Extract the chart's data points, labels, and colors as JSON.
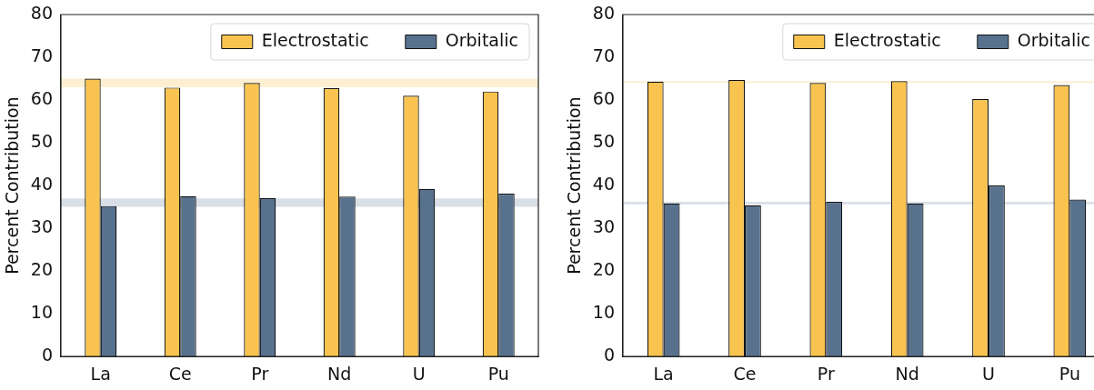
{
  "chart_data": [
    {
      "type": "bar",
      "categories": [
        "La",
        "Ce",
        "Pr",
        "Nd",
        "U",
        "Pu"
      ],
      "ylabel": "Percent Contribution",
      "ylim": [
        0,
        80
      ],
      "yticks": [
        0,
        10,
        20,
        30,
        40,
        50,
        60,
        70,
        80
      ],
      "legend": "top right",
      "grid": false,
      "series": [
        {
          "name": "Electrostatic",
          "color": "#f8c44f",
          "values": [
            65,
            62.9,
            64,
            62.8,
            61,
            62
          ]
        },
        {
          "name": "Orbitalic",
          "color": "#58728e",
          "values": [
            35.2,
            37.5,
            37.1,
            37.4,
            39.2,
            38.1
          ]
        }
      ],
      "bands": [
        {
          "axis": "y",
          "from": 63,
          "to": 65,
          "color": "#fcefd2"
        },
        {
          "axis": "y",
          "from": 35,
          "to": 37,
          "color": "#d9dfe6"
        }
      ]
    },
    {
      "type": "bar",
      "categories": [
        "La",
        "Ce",
        "Pr",
        "Nd",
        "U",
        "Pu"
      ],
      "ylabel": "Percent Contribution",
      "ylim": [
        0,
        80
      ],
      "yticks": [
        0,
        10,
        20,
        30,
        40,
        50,
        60,
        70,
        80
      ],
      "legend": "top right",
      "grid": false,
      "series": [
        {
          "name": "Electrostatic",
          "color": "#f8c44f",
          "values": [
            64.3,
            64.7,
            64,
            64.4,
            60.2,
            63.5
          ]
        },
        {
          "name": "Orbitalic",
          "color": "#58728e",
          "values": [
            35.8,
            35.4,
            36.2,
            35.8,
            40,
            36.7
          ]
        }
      ],
      "bands": [
        {
          "axis": "y",
          "from": 64,
          "to": 64.4,
          "color": "#fcefd2"
        },
        {
          "axis": "y",
          "from": 35.6,
          "to": 36.2,
          "color": "#d9dfe6"
        }
      ]
    }
  ]
}
